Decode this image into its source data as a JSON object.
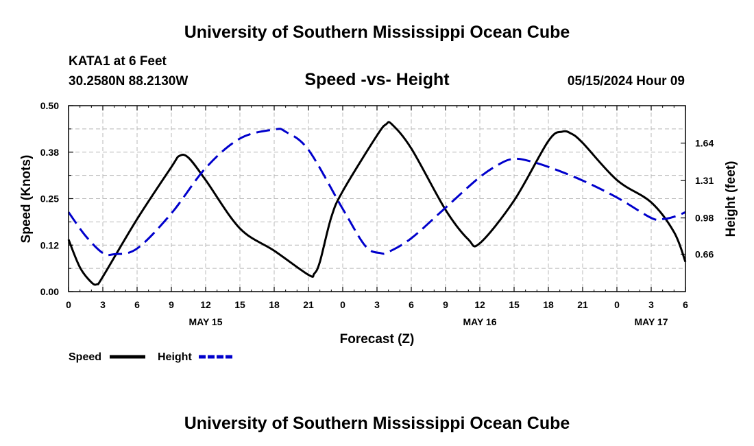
{
  "header": {
    "title": "University of Southern Mississippi Ocean Cube",
    "station": "KATA1 at 6 Feet",
    "coords": "30.2580N  88.2130W",
    "chart_title": "Speed -vs- Height",
    "date": "05/15/2024 Hour 09"
  },
  "footer": {
    "title": "University of Southern Mississippi Ocean Cube"
  },
  "legend": {
    "speed_label": "Speed",
    "height_label": "Height"
  },
  "chart_data": {
    "type": "line",
    "title": "Speed -vs- Height",
    "xlabel": "Forecast (Z)",
    "ylabel": "Speed (Knots)",
    "y2label": "Height (feet)",
    "x_range_hours": [
      0,
      54
    ],
    "x_ticks": [
      {
        "h": 0,
        "label": "0"
      },
      {
        "h": 3,
        "label": "3"
      },
      {
        "h": 6,
        "label": "6"
      },
      {
        "h": 9,
        "label": "9"
      },
      {
        "h": 12,
        "label": "12"
      },
      {
        "h": 15,
        "label": "15"
      },
      {
        "h": 18,
        "label": "18"
      },
      {
        "h": 21,
        "label": "21"
      },
      {
        "h": 24,
        "label": "0"
      },
      {
        "h": 27,
        "label": "3"
      },
      {
        "h": 30,
        "label": "6"
      },
      {
        "h": 33,
        "label": "9"
      },
      {
        "h": 36,
        "label": "12"
      },
      {
        "h": 39,
        "label": "15"
      },
      {
        "h": 42,
        "label": "18"
      },
      {
        "h": 45,
        "label": "21"
      },
      {
        "h": 48,
        "label": "0"
      },
      {
        "h": 51,
        "label": "3"
      },
      {
        "h": 54,
        "label": "6"
      }
    ],
    "date_labels": [
      {
        "h": 12,
        "label": "MAY 15"
      },
      {
        "h": 36,
        "label": "MAY 16"
      },
      {
        "h": 51,
        "label": "MAY 17"
      }
    ],
    "ylim": [
      0,
      0.5
    ],
    "y_ticks": [
      "0.00",
      "0.12",
      "0.25",
      "0.38",
      "0.50"
    ],
    "y2lim": [
      0.33,
      1.97
    ],
    "y2_ticks": [
      "0.66",
      "0.98",
      "1.31",
      "1.64"
    ],
    "grid": true,
    "series": [
      {
        "name": "Speed",
        "axis": "left",
        "color": "#000000",
        "dash": "solid",
        "points": [
          [
            0,
            0.14
          ],
          [
            1,
            0.065
          ],
          [
            2,
            0.025
          ],
          [
            2.5,
            0.02
          ],
          [
            3,
            0.04
          ],
          [
            6,
            0.195
          ],
          [
            9,
            0.335
          ],
          [
            9.7,
            0.365
          ],
          [
            10.5,
            0.36
          ],
          [
            12,
            0.3
          ],
          [
            15,
            0.17
          ],
          [
            18,
            0.11
          ],
          [
            21,
            0.045
          ],
          [
            21.5,
            0.048
          ],
          [
            22,
            0.08
          ],
          [
            23,
            0.2
          ],
          [
            24,
            0.27
          ],
          [
            27,
            0.42
          ],
          [
            27.8,
            0.45
          ],
          [
            28.3,
            0.45
          ],
          [
            30,
            0.385
          ],
          [
            33,
            0.22
          ],
          [
            35,
            0.14
          ],
          [
            36,
            0.13
          ],
          [
            39,
            0.245
          ],
          [
            42,
            0.405
          ],
          [
            43.2,
            0.43
          ],
          [
            44,
            0.425
          ],
          [
            45,
            0.4
          ],
          [
            48,
            0.3
          ],
          [
            51,
            0.24
          ],
          [
            53,
            0.16
          ],
          [
            54,
            0.08
          ]
        ]
      },
      {
        "name": "Height",
        "axis": "right",
        "color": "#0000cc",
        "dash": "dashed",
        "points": [
          [
            0,
            1.03
          ],
          [
            1.5,
            0.82
          ],
          [
            3,
            0.67
          ],
          [
            4,
            0.66
          ],
          [
            6,
            0.71
          ],
          [
            9,
            1.02
          ],
          [
            12,
            1.42
          ],
          [
            15,
            1.68
          ],
          [
            18,
            1.76
          ],
          [
            19,
            1.74
          ],
          [
            21,
            1.58
          ],
          [
            24,
            1.06
          ],
          [
            26,
            0.73
          ],
          [
            27.3,
            0.67
          ],
          [
            28,
            0.68
          ],
          [
            30,
            0.8
          ],
          [
            33,
            1.07
          ],
          [
            36,
            1.34
          ],
          [
            38,
            1.47
          ],
          [
            39,
            1.5
          ],
          [
            40,
            1.49
          ],
          [
            42,
            1.43
          ],
          [
            45,
            1.31
          ],
          [
            48,
            1.16
          ],
          [
            51,
            0.98
          ],
          [
            52,
            0.97
          ],
          [
            53,
            0.99
          ],
          [
            54,
            1.03
          ]
        ]
      }
    ]
  }
}
